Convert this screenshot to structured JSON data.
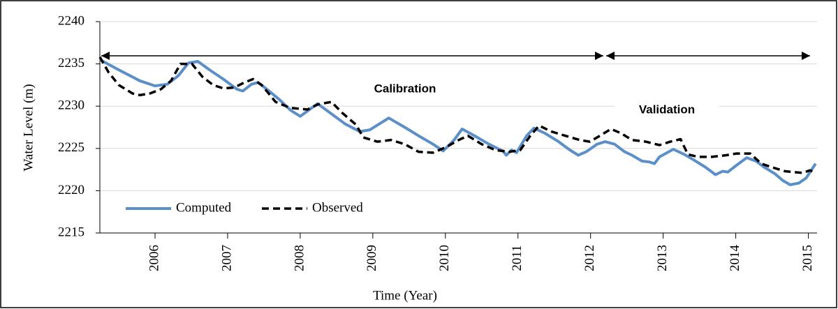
{
  "chart_data": {
    "type": "line",
    "x_label": "Time (Year)",
    "y_label": "Water Level (m)",
    "annotations": [
      "Calibration",
      "Validation"
    ],
    "xlim": [
      2005.24,
      2015.12
    ],
    "xticks": [
      2006,
      2007,
      2008,
      2009,
      2010,
      2011,
      2012,
      2013,
      2014,
      2015
    ],
    "ylim": [
      2215,
      2240
    ],
    "yticks": [
      2215,
      2220,
      2225,
      2230,
      2235,
      2240
    ],
    "grid": true,
    "legend": "lower left",
    "series": [
      {
        "name": "Computed",
        "color": "#5b8fc9",
        "dashed": false,
        "x": [
          2005.24,
          2005.5,
          2005.79,
          2006.0,
          2006.17,
          2006.32,
          2006.46,
          2006.59,
          2006.75,
          2006.94,
          2007.13,
          2007.21,
          2007.33,
          2007.42,
          2007.57,
          2007.71,
          2007.87,
          2008.0,
          2008.24,
          2008.62,
          2008.82,
          2008.96,
          2009.22,
          2009.44,
          2009.63,
          2009.83,
          2009.97,
          2010.12,
          2010.23,
          2010.4,
          2010.6,
          2010.79,
          2010.84,
          2010.91,
          2010.98,
          2011.12,
          2011.22,
          2011.37,
          2011.56,
          2011.7,
          2011.83,
          2011.94,
          2012.09,
          2012.2,
          2012.33,
          2012.47,
          2012.57,
          2012.71,
          2012.81,
          2012.88,
          2012.95,
          2013.14,
          2013.29,
          2013.43,
          2013.58,
          2013.72,
          2013.82,
          2013.89,
          2014.01,
          2014.15,
          2014.28,
          2014.39,
          2014.54,
          2014.65,
          2014.75,
          2014.87,
          2014.97,
          2015.1
        ],
        "values": [
          2235.5,
          2234.3,
          2233,
          2232.4,
          2232.6,
          2233.6,
          2235.1,
          2235.3,
          2234.3,
          2233.2,
          2232,
          2231.8,
          2232.6,
          2232.8,
          2231.8,
          2230.8,
          2229.5,
          2228.8,
          2230.3,
          2227.9,
          2227,
          2227.2,
          2228.6,
          2227.5,
          2226.5,
          2225.5,
          2224.7,
          2226,
          2227.3,
          2226.5,
          2225.5,
          2224.7,
          2224.2,
          2224.8,
          2224.5,
          2226.5,
          2227.4,
          2226.8,
          2225.8,
          2224.9,
          2224.2,
          2224.6,
          2225.5,
          2225.8,
          2225.5,
          2224.6,
          2224.2,
          2223.5,
          2223.4,
          2223.2,
          2224,
          2224.9,
          2224.3,
          2223.6,
          2222.8,
          2221.9,
          2222.3,
          2222.2,
          2223,
          2223.9,
          2223.5,
          2222.8,
          2222,
          2221.2,
          2220.7,
          2220.9,
          2221.5,
          2223.2
        ]
      },
      {
        "name": "Observed",
        "color": "#000000",
        "dashed": true,
        "x": [
          2005.24,
          2005.36,
          2005.5,
          2005.69,
          2005.79,
          2005.93,
          2006.08,
          2006.22,
          2006.35,
          2006.51,
          2006.65,
          2006.8,
          2006.94,
          2007.09,
          2007.23,
          2007.35,
          2007.47,
          2007.66,
          2007.86,
          2008.1,
          2008.24,
          2008.43,
          2008.58,
          2008.77,
          2008.87,
          2009.06,
          2009.25,
          2009.44,
          2009.63,
          2009.83,
          2010.02,
          2010.16,
          2010.31,
          2010.5,
          2010.69,
          2010.88,
          2011.03,
          2011.17,
          2011.29,
          2011.46,
          2011.65,
          2011.85,
          2011.99,
          2012.13,
          2012.28,
          2012.42,
          2012.57,
          2012.76,
          2012.95,
          2013.1,
          2013.24,
          2013.34,
          2013.48,
          2013.67,
          2013.87,
          2014.01,
          2014.2,
          2014.35,
          2014.49,
          2014.68,
          2014.92,
          2015.02,
          2015.1
        ],
        "values": [
          2235.8,
          2234,
          2232.5,
          2231.5,
          2231.3,
          2231.5,
          2232,
          2233,
          2235,
          2235,
          2233.5,
          2232.5,
          2232.1,
          2232.2,
          2232.8,
          2233.2,
          2232.5,
          2230.5,
          2229.8,
          2229.6,
          2230.2,
          2230.5,
          2229.2,
          2227.8,
          2226.3,
          2225.8,
          2226,
          2225.5,
          2224.6,
          2224.5,
          2225.2,
          2225.9,
          2226.5,
          2225.5,
          2224.8,
          2224.6,
          2224.8,
          2226.5,
          2227.7,
          2227,
          2226.5,
          2226,
          2225.8,
          2226.5,
          2227.3,
          2226.8,
          2226,
          2225.8,
          2225.4,
          2225.8,
          2226.1,
          2224.3,
          2224,
          2224,
          2224.2,
          2224.4,
          2224.4,
          2223.2,
          2222.8,
          2222.3,
          2222.1,
          2222.4,
          2222.2
        ]
      }
    ]
  }
}
